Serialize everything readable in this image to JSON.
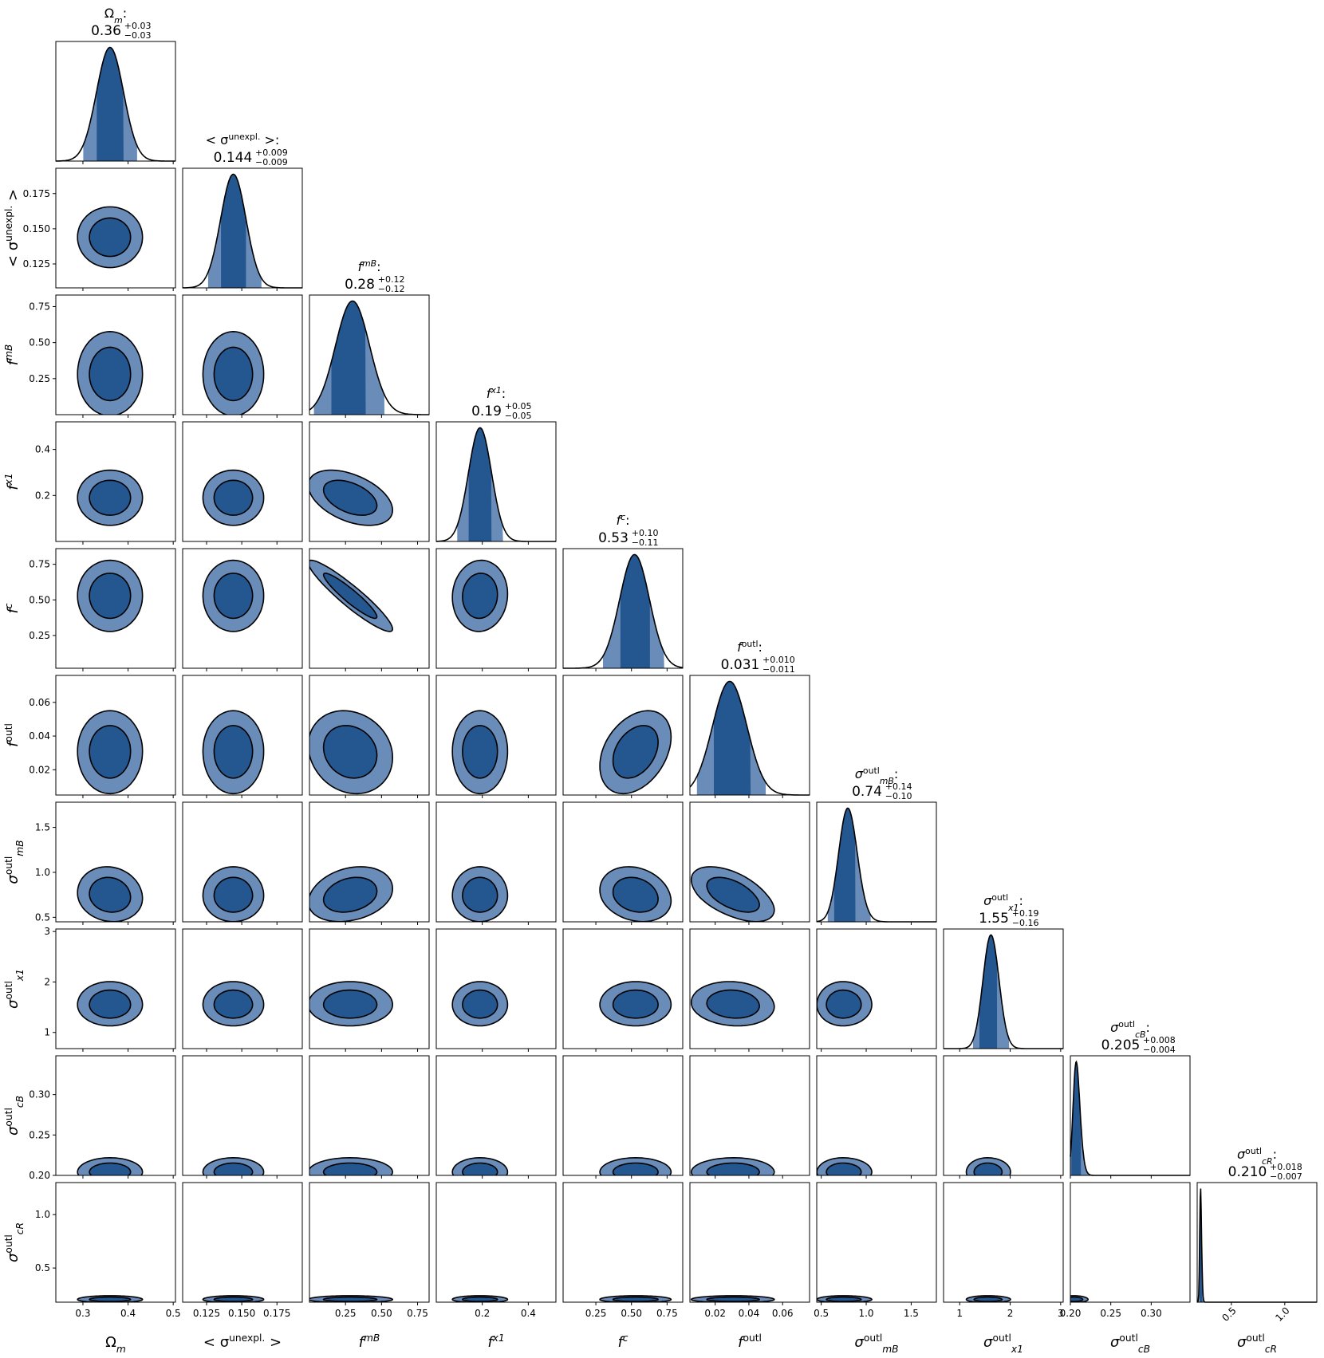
{
  "colors": {
    "dark_fill": "#24568f",
    "light_fill": "#6a8cb8",
    "line": "#000000",
    "background": "#ffffff"
  },
  "chart_data": {
    "type": "corner",
    "description_of_layout": "lower-triangular corner plot; diagonal = 1D marginals, off-diagonal = 2D contours (68% and 95%)",
    "parameters": [
      {
        "id": "om",
        "label": "Ωm",
        "header_name": "Ωm:",
        "median": "0.36",
        "plus": "+0.03",
        "minus": "−0.03",
        "range": [
          0.24,
          0.505
        ],
        "ticks": [
          0.3,
          0.4,
          0.5
        ],
        "tick_labels": [
          "0.3",
          "0.4",
          "0.5"
        ],
        "mu": 0.36,
        "sigma": 0.03,
        "skew": 0,
        "hpd68": [
          0.33,
          0.39
        ],
        "hpd95": [
          0.3,
          0.42
        ]
      },
      {
        "id": "sig",
        "label": "< σunexpl. >",
        "header_name": "< σunexpl. >:",
        "median": "0.144",
        "plus": "+0.009",
        "minus": "−0.009",
        "range": [
          0.108,
          0.193
        ],
        "ticks": [
          0.125,
          0.15,
          0.175
        ],
        "tick_labels": [
          "0.125",
          "0.150",
          "0.175"
        ],
        "mu": 0.144,
        "sigma": 0.009,
        "skew": 0,
        "hpd68": [
          0.135,
          0.153
        ],
        "hpd95": [
          0.126,
          0.164
        ]
      },
      {
        "id": "fmb",
        "label": "fmB",
        "header_name": "fmB:",
        "median": "0.28",
        "plus": "+0.12",
        "minus": "−0.12",
        "range": [
          0.0,
          0.83
        ],
        "ticks": [
          0.25,
          0.5,
          0.75
        ],
        "tick_labels": [
          "0.25",
          "0.50",
          "0.75"
        ],
        "mu": 0.28,
        "sigma": 0.12,
        "skew": 0.2,
        "hpd68": [
          0.15,
          0.39
        ],
        "hpd95": [
          0.03,
          0.52
        ]
      },
      {
        "id": "fx1",
        "label": "fx1",
        "header_name": "fx1:",
        "median": "0.19",
        "plus": "+0.05",
        "minus": "−0.05",
        "range": [
          0.0,
          0.52
        ],
        "ticks": [
          0.2,
          0.4
        ],
        "tick_labels": [
          "0.2",
          "0.4"
        ],
        "mu": 0.19,
        "sigma": 0.05,
        "skew": 0,
        "hpd68": [
          0.14,
          0.24
        ],
        "hpd95": [
          0.09,
          0.29
        ]
      },
      {
        "id": "fc",
        "label": "fc",
        "header_name": "fc:",
        "median": "0.53",
        "plus": "+0.10",
        "minus": "−0.11",
        "range": [
          0.02,
          0.86
        ],
        "ticks": [
          0.25,
          0.5,
          0.75
        ],
        "tick_labels": [
          "0.25",
          "0.50",
          "0.75"
        ],
        "mu": 0.53,
        "sigma": 0.105,
        "skew": -0.1,
        "hpd68": [
          0.42,
          0.63
        ],
        "hpd95": [
          0.3,
          0.73
        ]
      },
      {
        "id": "fout",
        "label": "foutl",
        "header_name": "foutl:",
        "median": "0.031",
        "plus": "+0.010",
        "minus": "−0.011",
        "range": [
          0.005,
          0.076
        ],
        "ticks": [
          0.02,
          0.04,
          0.06
        ],
        "tick_labels": [
          "0.02",
          "0.04",
          "0.06"
        ],
        "mu": 0.031,
        "sigma": 0.0105,
        "skew": -0.3,
        "hpd68": [
          0.019,
          0.041
        ],
        "hpd95": [
          0.009,
          0.05
        ]
      },
      {
        "id": "smb",
        "label": "σoutl mB",
        "header_name": "σoutl mB:",
        "median": "0.74",
        "plus": "+0.14",
        "minus": "−0.10",
        "range": [
          0.45,
          1.78
        ],
        "ticks": [
          0.5,
          1.0,
          1.5
        ],
        "tick_labels": [
          "0.5",
          "1.0",
          "1.5"
        ],
        "mu": 0.74,
        "sigma": 0.12,
        "skew": 0.8,
        "hpd68": [
          0.64,
          0.88
        ],
        "hpd95": [
          0.57,
          1.05
        ]
      },
      {
        "id": "sx1",
        "label": "σoutl x1",
        "header_name": "σoutl x1:",
        "median": "1.55",
        "plus": "+0.19",
        "minus": "−0.16",
        "range": [
          0.68,
          3.05
        ],
        "ticks": [
          1,
          2,
          3
        ],
        "tick_labels": [
          "1",
          "2",
          "3"
        ],
        "mu": 1.55,
        "sigma": 0.175,
        "skew": 0.6,
        "hpd68": [
          1.39,
          1.74
        ],
        "hpd95": [
          1.26,
          1.98
        ]
      },
      {
        "id": "scb",
        "label": "σoutl cB",
        "header_name": "σoutl cB:",
        "median": "0.205",
        "plus": "+0.008",
        "minus": "−0.004",
        "range": [
          0.2,
          0.348
        ],
        "ticks": [
          0.2,
          0.25,
          0.3
        ],
        "tick_labels": [
          "0.20",
          "0.25",
          "0.30"
        ],
        "mu": 0.204,
        "sigma": 0.006,
        "skew": 1.6,
        "hpd68": [
          0.201,
          0.213
        ],
        "hpd95": [
          0.2,
          0.222
        ]
      },
      {
        "id": "scr",
        "label": "σoutl cR",
        "header_name": "σoutl cR:",
        "median": "0.210",
        "plus": "+0.018",
        "minus": "−0.007",
        "range": [
          0.18,
          1.3
        ],
        "ticks": [
          0.5,
          1.0
        ],
        "tick_labels": [
          "0.5",
          "1.0"
        ],
        "mu": 0.205,
        "sigma": 0.012,
        "skew": 1.6,
        "hpd68": [
          0.2,
          0.228
        ],
        "hpd95": [
          0.195,
          0.26
        ]
      }
    ],
    "y_ticks_rows": {
      "sig": {
        "ticks": [
          0.125,
          0.15,
          0.175
        ],
        "tick_labels": [
          "0.125",
          "0.150",
          "0.175"
        ]
      },
      "fmb": {
        "ticks": [
          0.25,
          0.5,
          0.75
        ],
        "tick_labels": [
          "0.25",
          "0.50",
          "0.75"
        ]
      },
      "fx1": {
        "ticks": [
          0.2,
          0.4
        ],
        "tick_labels": [
          "0.2",
          "0.4"
        ]
      },
      "fc": {
        "ticks": [
          0.25,
          0.5,
          0.75
        ],
        "tick_labels": [
          "0.25",
          "0.50",
          "0.75"
        ]
      },
      "fout": {
        "ticks": [
          0.02,
          0.04,
          0.06
        ],
        "tick_labels": [
          "0.02",
          "0.04",
          "0.06"
        ]
      },
      "smb": {
        "ticks": [
          0.5,
          1.0,
          1.5
        ],
        "tick_labels": [
          "0.5",
          "1.0",
          "1.5"
        ]
      },
      "sx1": {
        "ticks": [
          1,
          2,
          3
        ],
        "tick_labels": [
          "1",
          "2",
          "3"
        ]
      },
      "scb": {
        "ticks": [
          0.2,
          0.25,
          0.3
        ],
        "tick_labels": [
          "0.20",
          "0.25",
          "0.30"
        ]
      },
      "scr": {
        "ticks": [
          0.5,
          1.0
        ],
        "tick_labels": [
          "0.5",
          "1.0"
        ]
      }
    },
    "correlations": {
      "fmb-fx1": -0.45,
      "fmb-fc": -0.93,
      "fx1-fc": 0.05,
      "om-fc": 0.0,
      "fc-fout": 0.35,
      "fout-smb": -0.55,
      "fmb-smb": 0.25,
      "fc-smb": -0.2,
      "fmb-fout": -0.15,
      "om-smb": -0.1,
      "fout-sx1": -0.1,
      "smb-sx1": 0.0
    },
    "grid": false,
    "legend": "none",
    "contour_levels": [
      "68%",
      "95%"
    ]
  }
}
